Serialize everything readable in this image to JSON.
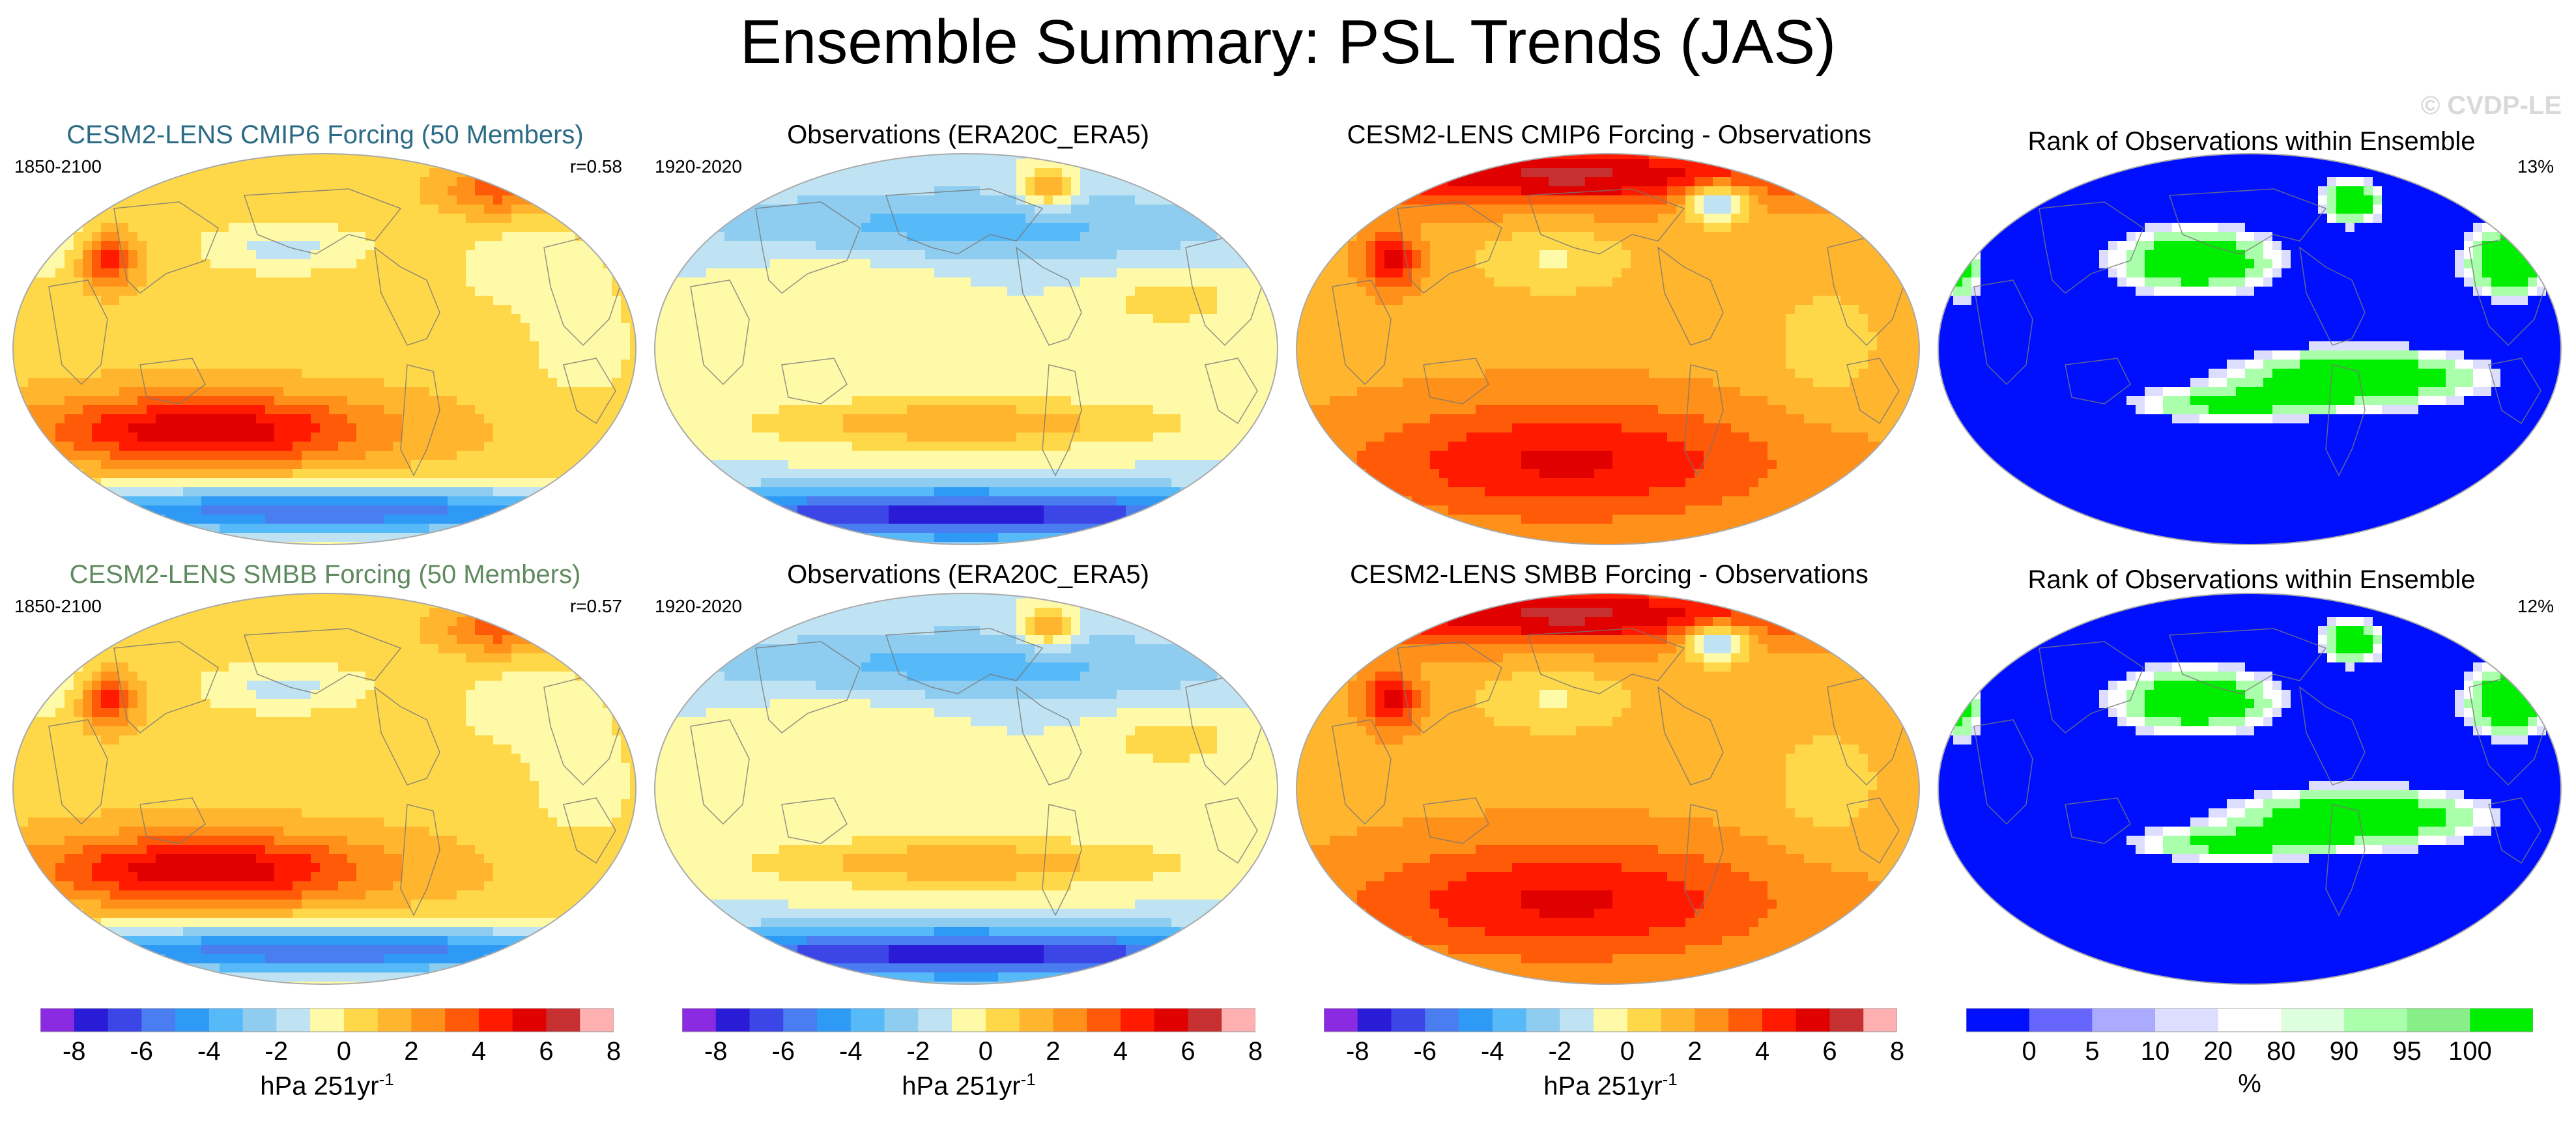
{
  "title": "Ensemble Summary: PSL Trends (JAS)",
  "watermark": "© CVDP-LE",
  "rows": [
    {
      "panels": [
        {
          "title": "CESM2-LENS CMIP6 Forcing (50 Members)",
          "title_color": "#2b6b85",
          "left_label": "1850-2100",
          "right_label": "r=0.58",
          "type": "trend"
        },
        {
          "title": "Observations (ERA20C_ERA5)",
          "title_color": "#000000",
          "left_label": "1920-2020",
          "right_label": "",
          "type": "obs"
        },
        {
          "title": "CESM2-LENS CMIP6 Forcing - Observations",
          "title_color": "#000000",
          "left_label": "",
          "right_label": "",
          "type": "diff"
        },
        {
          "title": "Rank of Observations within Ensemble",
          "title_color": "#000000",
          "left_label": "",
          "right_label": "13%",
          "type": "rank"
        }
      ]
    },
    {
      "panels": [
        {
          "title": "CESM2-LENS SMBB Forcing (50 Members)",
          "title_color": "#5f8a5f",
          "left_label": "1850-2100",
          "right_label": "r=0.57",
          "type": "trend"
        },
        {
          "title": "Observations (ERA20C_ERA5)",
          "title_color": "#000000",
          "left_label": "1920-2020",
          "right_label": "",
          "type": "obs"
        },
        {
          "title": "CESM2-LENS SMBB Forcing - Observations",
          "title_color": "#000000",
          "left_label": "",
          "right_label": "",
          "type": "diff"
        },
        {
          "title": "Rank of Observations within Ensemble",
          "title_color": "#000000",
          "left_label": "",
          "right_label": "12%",
          "type": "rank"
        }
      ]
    }
  ],
  "colorbar_trend": {
    "colors": [
      "#8a2be2",
      "#2a1bd6",
      "#3c46e6",
      "#4a7ef0",
      "#2f9af5",
      "#56b9f8",
      "#8fcdf0",
      "#bfe3f2",
      "#fffaa8",
      "#ffd84a",
      "#ffb52e",
      "#ff9019",
      "#ff5a08",
      "#ff1a00",
      "#e10000",
      "#c73030",
      "#ffb0b0"
    ],
    "ticks": [
      "-8",
      "-6",
      "-4",
      "-2",
      "0",
      "2",
      "4",
      "6",
      "8"
    ],
    "units": "hPa 251yr",
    "units_sup": "-1"
  },
  "colorbar_rank": {
    "colors": [
      "#0010ff",
      "#6666ff",
      "#aaaaff",
      "#ddddff",
      "#ffffff",
      "#ddffdd",
      "#aaffaa",
      "#88ee88",
      "#00ee00"
    ],
    "ticks": [
      "0",
      "5",
      "10",
      "20",
      "80",
      "90",
      "95",
      "100"
    ],
    "units": "%"
  },
  "colors": {
    "ocean_base": "#ffffff",
    "land_line": "#777777"
  }
}
